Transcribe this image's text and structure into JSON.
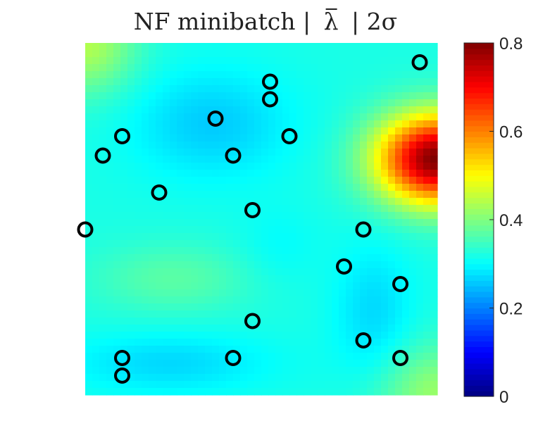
{
  "chart_data": {
    "type": "heatmap",
    "title": "NF minibatch | λ̄ | 2σ",
    "title_parts": [
      "NF minibatch |",
      "λ",
      "| 2σ"
    ],
    "xlabel": "",
    "ylabel": "",
    "grid": false,
    "xlim": [
      0,
      1
    ],
    "ylim": [
      0,
      1
    ],
    "colorbar": {
      "colormap": "jet",
      "range": [
        0,
        0.8
      ],
      "ticks": [
        0,
        0.2,
        0.4,
        0.6,
        0.8
      ],
      "tick_labels": [
        "0",
        "0.2",
        "0.4",
        "0.6",
        "0.8"
      ]
    },
    "field": {
      "base": 0.32,
      "bumps": [
        {
          "x": 1.0,
          "y": 0.67,
          "sx": 0.12,
          "sy": 0.09,
          "a": 0.48
        },
        {
          "x": 0.36,
          "y": 0.77,
          "sx": 0.16,
          "sy": 0.11,
          "a": -0.06
        },
        {
          "x": 0.82,
          "y": 0.23,
          "sx": 0.08,
          "sy": 0.14,
          "a": -0.05
        },
        {
          "x": 0.24,
          "y": 0.09,
          "sx": 0.2,
          "sy": 0.06,
          "a": -0.05
        },
        {
          "x": 0.25,
          "y": 0.33,
          "sx": 0.16,
          "sy": 0.07,
          "a": 0.05
        },
        {
          "x": 0.0,
          "y": 1.0,
          "sx": 0.1,
          "sy": 0.1,
          "a": 0.12
        },
        {
          "x": 1.0,
          "y": 0.0,
          "sx": 0.12,
          "sy": 0.1,
          "a": 0.1
        },
        {
          "x": 0.55,
          "y": 0.42,
          "sx": 0.08,
          "sy": 0.08,
          "a": -0.02
        }
      ]
    },
    "points": [
      {
        "x": 0.95,
        "y": 0.945
      },
      {
        "x": 0.525,
        "y": 0.89
      },
      {
        "x": 0.525,
        "y": 0.84
      },
      {
        "x": 0.37,
        "y": 0.785
      },
      {
        "x": 0.105,
        "y": 0.735
      },
      {
        "x": 0.58,
        "y": 0.735
      },
      {
        "x": 0.05,
        "y": 0.68
      },
      {
        "x": 0.42,
        "y": 0.68
      },
      {
        "x": 0.21,
        "y": 0.575
      },
      {
        "x": 0.475,
        "y": 0.525
      },
      {
        "x": 0.0,
        "y": 0.47
      },
      {
        "x": 0.79,
        "y": 0.47
      },
      {
        "x": 0.735,
        "y": 0.365
      },
      {
        "x": 0.895,
        "y": 0.315
      },
      {
        "x": 0.475,
        "y": 0.21
      },
      {
        "x": 0.79,
        "y": 0.155
      },
      {
        "x": 0.105,
        "y": 0.105
      },
      {
        "x": 0.42,
        "y": 0.105
      },
      {
        "x": 0.895,
        "y": 0.105
      },
      {
        "x": 0.105,
        "y": 0.055
      }
    ]
  }
}
